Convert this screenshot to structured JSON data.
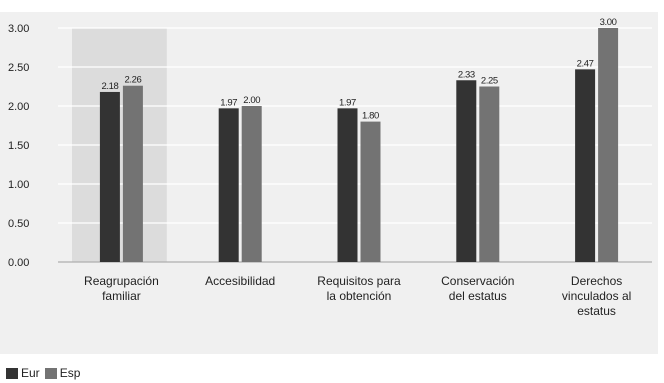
{
  "chart_data": {
    "type": "bar",
    "categories": [
      [
        "Reagrupación",
        "familiar"
      ],
      [
        "Accesibilidad"
      ],
      [
        "Requisitos para",
        "la obtención"
      ],
      [
        "Conservación",
        "del estatus"
      ],
      [
        "Derechos",
        "vinculados al",
        "estatus"
      ]
    ],
    "series": [
      {
        "name": "Eur",
        "values": [
          2.18,
          1.97,
          1.97,
          2.33,
          2.47
        ],
        "labels": [
          "2.18",
          "1.97",
          "1.97",
          "2.33",
          "2.47"
        ],
        "color": "#333333"
      },
      {
        "name": "Esp",
        "values": [
          2.26,
          2.0,
          1.8,
          2.25,
          3.0
        ],
        "labels": [
          "2.26",
          "2.00",
          "1.80",
          "2.25",
          "3.00"
        ],
        "color": "#737373"
      }
    ],
    "y_ticks": [
      "0.00",
      "0.50",
      "1.00",
      "1.50",
      "2.00",
      "2.50",
      "3.00"
    ],
    "ylim": [
      0,
      3
    ],
    "grid": true,
    "highlighted_category": 0,
    "legend_position": "bottom-left",
    "plot_background": "#f0f0f0",
    "highlight_color": "#dcdcdc",
    "grid_color": "#ffffff"
  }
}
